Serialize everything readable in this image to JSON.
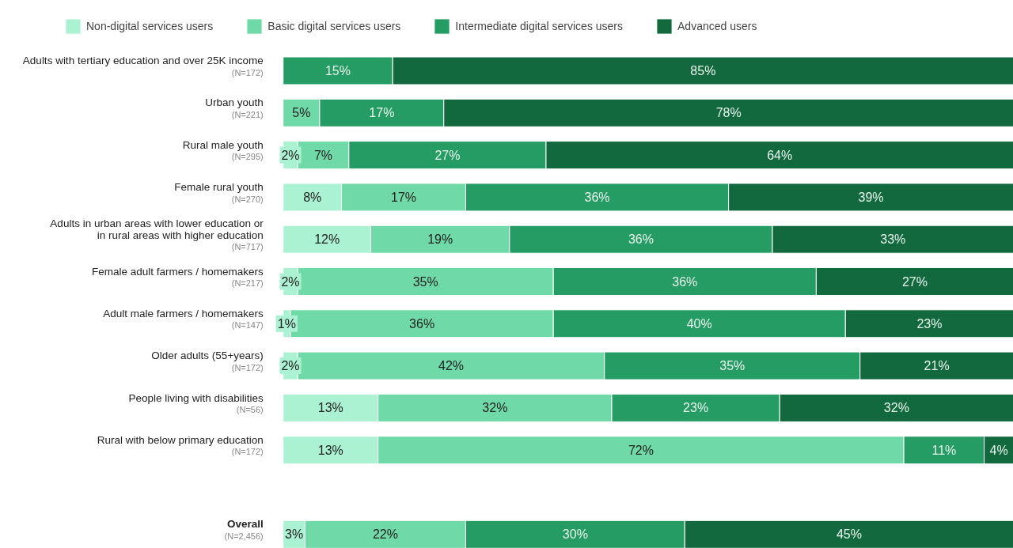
{
  "chart_data": {
    "type": "bar",
    "orientation": "horizontal",
    "stacked": true,
    "legend": "top",
    "grid": false,
    "tick_labels": false,
    "categories": [
      "Adults with tertiary education and over 25K income\n(N=172)",
      "Urban youth\n(N=221)",
      "Rural male youth\n(N=295)",
      "Female rural youth\n(N=270)",
      "Adults in urban areas with lower education or\nin rural areas with higher education\n(N=717)",
      "Female adult farmers / homemakers\n(N=217)",
      "Adult male farmers / homemakers\n(N=147)",
      "Older adults (55+years)\n(N=172)",
      "People living with disabilities\n(N=56)",
      "Rural with below primary education\n(N=172)",
      null,
      "Overall\n(N=2,456)"
    ],
    "series": [
      {
        "name": "Non-digital services users",
        "color": "#aaf2d2",
        "values": [
          null,
          null,
          2,
          8,
          12,
          2,
          1,
          2,
          13,
          13,
          null,
          3
        ],
        "value_labels": [
          null,
          null,
          "2%",
          "8%",
          "12%",
          "2%",
          "1%",
          "2%",
          "13%",
          "13%",
          null,
          "3%"
        ]
      },
      {
        "name": "Basic digital services users",
        "color": "#6fd9a7",
        "values": [
          null,
          5,
          7,
          17,
          19,
          35,
          36,
          42,
          32,
          72,
          null,
          22
        ],
        "value_labels": [
          null,
          "5%",
          "7%",
          "17%",
          "19%",
          "35%",
          "36%",
          "42%",
          "32%",
          "72%",
          null,
          "22%"
        ]
      },
      {
        "name": "Intermediate digital services users",
        "color": "#259c63",
        "values": [
          15,
          17,
          27,
          36,
          36,
          36,
          40,
          35,
          23,
          11,
          null,
          30
        ],
        "value_labels": [
          "15%",
          "17%",
          "27%",
          "36%",
          "36%",
          "36%",
          "40%",
          "35%",
          "23%",
          "11%",
          null,
          "30%"
        ]
      },
      {
        "name": "Advanced users",
        "color": "#12693e",
        "values": [
          85,
          78,
          64,
          39,
          33,
          27,
          23,
          21,
          32,
          4,
          null,
          45
        ],
        "value_labels": [
          "85%",
          "78%",
          "64%",
          "39%",
          "33%",
          "27%",
          "23%",
          "21%",
          "32%",
          "4%",
          null,
          "45%"
        ]
      }
    ]
  }
}
